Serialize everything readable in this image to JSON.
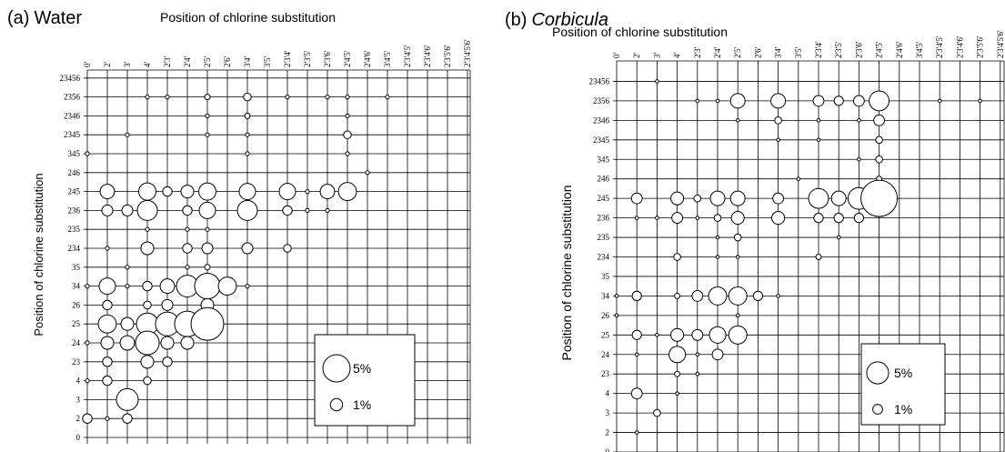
{
  "chart_data": [
    {
      "type": "bubble",
      "panel": "(a)",
      "title": "Water",
      "title_italic": false,
      "x_label": "Position of chlorine substitution",
      "y_label": "Position of chlorine substitution",
      "x_categories": [
        "0'",
        "2'",
        "3'",
        "4'",
        "2'3'",
        "2'4'",
        "2'5'",
        "2'6'",
        "3'4'",
        "3'5'",
        "2'3'4'",
        "2'3'5'",
        "2'3'6'",
        "2'4'5'",
        "2'4'6'",
        "3'4'5'",
        "2'3'4'5'",
        "2'3'4'6'",
        "2'3'5'6'",
        "2'3'4'5'6'"
      ],
      "y_categories": [
        "0",
        "2",
        "3",
        "4",
        "23",
        "24",
        "25",
        "26",
        "34",
        "35",
        "234",
        "235",
        "236",
        "245",
        "246",
        "345",
        "2345",
        "2346",
        "2356",
        "23456"
      ],
      "legend": {
        "values": [
          5,
          1
        ],
        "value_labels": [
          "5%",
          "1%"
        ]
      },
      "points": [
        {
          "x": "4'",
          "y": "2356",
          "value": 0.1
        },
        {
          "x": "2'3'",
          "y": "2356",
          "value": 0.1
        },
        {
          "x": "2'5'",
          "y": "2356",
          "value": 0.2
        },
        {
          "x": "3'4'",
          "y": "2356",
          "value": 0.4
        },
        {
          "x": "2'3'4'",
          "y": "2356",
          "value": 0.1
        },
        {
          "x": "2'3'6'",
          "y": "2356",
          "value": 0.1
        },
        {
          "x": "2'4'5'",
          "y": "2356",
          "value": 0.1
        },
        {
          "x": "3'4'5'",
          "y": "2356",
          "value": 0.1
        },
        {
          "x": "2'5'",
          "y": "2346",
          "value": 0.1
        },
        {
          "x": "3'4'",
          "y": "2346",
          "value": 0.2
        },
        {
          "x": "2'4'5'",
          "y": "2346",
          "value": 0.1
        },
        {
          "x": "3'",
          "y": "2345",
          "value": 0.1
        },
        {
          "x": "2'5'",
          "y": "2345",
          "value": 0.1
        },
        {
          "x": "3'4'",
          "y": "2345",
          "value": 0.1
        },
        {
          "x": "2'4'5'",
          "y": "2345",
          "value": 0.4
        },
        {
          "x": "0'",
          "y": "345",
          "value": 0.1
        },
        {
          "x": "3'4'",
          "y": "345",
          "value": 0.1
        },
        {
          "x": "2'4'5'",
          "y": "345",
          "value": 0.1
        },
        {
          "x": "2'4'6'",
          "y": "246",
          "value": 0.1
        },
        {
          "x": "2'",
          "y": "245",
          "value": 1.4
        },
        {
          "x": "4'",
          "y": "245",
          "value": 2
        },
        {
          "x": "2'3'",
          "y": "245",
          "value": 0.6
        },
        {
          "x": "2'4'",
          "y": "245",
          "value": 1.1
        },
        {
          "x": "2'5'",
          "y": "245",
          "value": 2
        },
        {
          "x": "3'4'",
          "y": "245",
          "value": 1.8
        },
        {
          "x": "2'3'4'",
          "y": "245",
          "value": 1.8
        },
        {
          "x": "2'3'5'",
          "y": "245",
          "value": 0.1
        },
        {
          "x": "2'3'6'",
          "y": "245",
          "value": 1.4
        },
        {
          "x": "2'4'5'",
          "y": "245",
          "value": 2.2
        },
        {
          "x": "2'",
          "y": "236",
          "value": 0.8
        },
        {
          "x": "3'",
          "y": "236",
          "value": 0.8
        },
        {
          "x": "4'",
          "y": "236",
          "value": 2.7
        },
        {
          "x": "2'4'",
          "y": "236",
          "value": 0.6
        },
        {
          "x": "2'5'",
          "y": "236",
          "value": 1.8
        },
        {
          "x": "3'4'",
          "y": "236",
          "value": 2.7
        },
        {
          "x": "2'3'4'",
          "y": "236",
          "value": 0.6
        },
        {
          "x": "2'3'5'",
          "y": "236",
          "value": 0.1
        },
        {
          "x": "2'3'6'",
          "y": "236",
          "value": 0.1
        },
        {
          "x": "4'",
          "y": "235",
          "value": 0.1
        },
        {
          "x": "2'4'",
          "y": "235",
          "value": 0.1
        },
        {
          "x": "2'5'",
          "y": "235",
          "value": 0.1
        },
        {
          "x": "2'",
          "y": "234",
          "value": 0.1
        },
        {
          "x": "4'",
          "y": "234",
          "value": 1.1
        },
        {
          "x": "2'4'",
          "y": "234",
          "value": 0.6
        },
        {
          "x": "2'5'",
          "y": "234",
          "value": 0.8
        },
        {
          "x": "3'4'",
          "y": "234",
          "value": 0.8
        },
        {
          "x": "2'3'4'",
          "y": "234",
          "value": 0.4
        },
        {
          "x": "3'",
          "y": "35",
          "value": 0.1
        },
        {
          "x": "2'4'",
          "y": "35",
          "value": 0.1
        },
        {
          "x": "2'5'",
          "y": "35",
          "value": 0.2
        },
        {
          "x": "0'",
          "y": "34",
          "value": 0.1
        },
        {
          "x": "2'",
          "y": "34",
          "value": 1.8
        },
        {
          "x": "3'",
          "y": "34",
          "value": 0.1
        },
        {
          "x": "4'",
          "y": "34",
          "value": 0.6
        },
        {
          "x": "2'3'",
          "y": "34",
          "value": 1.4
        },
        {
          "x": "2'4'",
          "y": "34",
          "value": 3.2
        },
        {
          "x": "2'5'",
          "y": "34",
          "value": 4.4
        },
        {
          "x": "2'6'",
          "y": "34",
          "value": 2.2
        },
        {
          "x": "3'4'",
          "y": "34",
          "value": 0.1
        },
        {
          "x": "2'",
          "y": "26",
          "value": 0.6
        },
        {
          "x": "4'",
          "y": "26",
          "value": 0.4
        },
        {
          "x": "2'3'",
          "y": "26",
          "value": 0.8
        },
        {
          "x": "2'5'",
          "y": "26",
          "value": 1.1
        },
        {
          "x": "2'",
          "y": "25",
          "value": 2.2
        },
        {
          "x": "3'",
          "y": "25",
          "value": 1.1
        },
        {
          "x": "4'",
          "y": "25",
          "value": 3.2
        },
        {
          "x": "2'3'",
          "y": "25",
          "value": 3.8
        },
        {
          "x": "2'4'",
          "y": "25",
          "value": 4.4
        },
        {
          "x": "2'5'",
          "y": "25",
          "value": 7.2
        },
        {
          "x": "0'",
          "y": "24",
          "value": 0.1
        },
        {
          "x": "2'",
          "y": "24",
          "value": 1.1
        },
        {
          "x": "3'",
          "y": "24",
          "value": 1.4
        },
        {
          "x": "4'",
          "y": "24",
          "value": 3.8
        },
        {
          "x": "2'3'",
          "y": "24",
          "value": 1.1
        },
        {
          "x": "2'4'",
          "y": "24",
          "value": 1.1
        },
        {
          "x": "2'",
          "y": "23",
          "value": 0.6
        },
        {
          "x": "4'",
          "y": "23",
          "value": 1.1
        },
        {
          "x": "2'3'",
          "y": "23",
          "value": 0.6
        },
        {
          "x": "0'",
          "y": "4",
          "value": 0.1
        },
        {
          "x": "2'",
          "y": "4",
          "value": 0.6
        },
        {
          "x": "4'",
          "y": "4",
          "value": 0.4
        },
        {
          "x": "3'",
          "y": "3",
          "value": 3.2
        },
        {
          "x": "0'",
          "y": "2",
          "value": 0.6
        },
        {
          "x": "2'",
          "y": "2",
          "value": 0.1
        },
        {
          "x": "3'",
          "y": "2",
          "value": 0.6
        }
      ]
    },
    {
      "type": "bubble",
      "panel": "(b)",
      "title": "Corbicula",
      "title_italic": true,
      "x_label": "Position of chlorine substitution",
      "y_label": "Position of chlorine substitution",
      "x_categories": [
        "0'",
        "2'",
        "3'",
        "4'",
        "2'3'",
        "2'4'",
        "2'5'",
        "2'6'",
        "3'4'",
        "3'5'",
        "2'3'4'",
        "2'3'5'",
        "2'3'6'",
        "2'4'5'",
        "2'4'6'",
        "3'4'5'",
        "2'3'4'5'",
        "2'3'4'6'",
        "2'3'5'6'",
        "2'3'4'5'6'"
      ],
      "y_categories": [
        "0",
        "2",
        "3",
        "4",
        "23",
        "24",
        "25",
        "26",
        "34",
        "35",
        "234",
        "235",
        "236",
        "245",
        "246",
        "345",
        "2345",
        "2346",
        "2356",
        "23456"
      ],
      "legend": {
        "values": [
          5,
          1
        ],
        "value_labels": [
          "5%",
          "1%"
        ]
      },
      "points": [
        {
          "x": "3'",
          "y": "23456",
          "value": 0.1
        },
        {
          "x": "2'3'",
          "y": "2356",
          "value": 0.1
        },
        {
          "x": "2'4'",
          "y": "2356",
          "value": 0.1
        },
        {
          "x": "2'5'",
          "y": "2356",
          "value": 2.2
        },
        {
          "x": "3'4'",
          "y": "2356",
          "value": 2.2
        },
        {
          "x": "2'3'4'",
          "y": "2356",
          "value": 1.2
        },
        {
          "x": "2'3'5'",
          "y": "2356",
          "value": 0.9
        },
        {
          "x": "2'3'6'",
          "y": "2356",
          "value": 1.2
        },
        {
          "x": "2'4'5'",
          "y": "2356",
          "value": 4.1
        },
        {
          "x": "2'3'4'5'",
          "y": "2356",
          "value": 0.1
        },
        {
          "x": "2'3'5'6'",
          "y": "2356",
          "value": 0.1
        },
        {
          "x": "2'5'",
          "y": "2346",
          "value": 0.1
        },
        {
          "x": "3'4'",
          "y": "2346",
          "value": 0.5
        },
        {
          "x": "2'3'4'",
          "y": "2346",
          "value": 0.1
        },
        {
          "x": "2'3'6'",
          "y": "2346",
          "value": 0.1
        },
        {
          "x": "2'4'5'",
          "y": "2346",
          "value": 1.2
        },
        {
          "x": "3'4'",
          "y": "2345",
          "value": 0.1
        },
        {
          "x": "2'3'4'",
          "y": "2345",
          "value": 0.1
        },
        {
          "x": "2'4'5'",
          "y": "2345",
          "value": 0.5
        },
        {
          "x": "2'3'6'",
          "y": "345",
          "value": 0.1
        },
        {
          "x": "2'4'5'",
          "y": "345",
          "value": 0.5
        },
        {
          "x": "3'5'",
          "y": "246",
          "value": 0.1
        },
        {
          "x": "2'4'5'",
          "y": "246",
          "value": 0.3
        },
        {
          "x": "2'",
          "y": "245",
          "value": 1.2
        },
        {
          "x": "4'",
          "y": "245",
          "value": 1.7
        },
        {
          "x": "2'3'",
          "y": "245",
          "value": 0.5
        },
        {
          "x": "2'4'",
          "y": "245",
          "value": 2.2
        },
        {
          "x": "2'5'",
          "y": "245",
          "value": 2.2
        },
        {
          "x": "3'4'",
          "y": "245",
          "value": 1.2
        },
        {
          "x": "2'3'4'",
          "y": "245",
          "value": 4.1
        },
        {
          "x": "2'3'5'",
          "y": "245",
          "value": 2.2
        },
        {
          "x": "2'3'6'",
          "y": "245",
          "value": 4.9
        },
        {
          "x": "2'4'5'",
          "y": "245",
          "value": 13.7
        },
        {
          "x": "2'",
          "y": "236",
          "value": 0.1
        },
        {
          "x": "3'",
          "y": "236",
          "value": 0.1
        },
        {
          "x": "4'",
          "y": "236",
          "value": 1.2
        },
        {
          "x": "2'3'",
          "y": "236",
          "value": 0.1
        },
        {
          "x": "2'4'",
          "y": "236",
          "value": 0.5
        },
        {
          "x": "2'5'",
          "y": "236",
          "value": 1.7
        },
        {
          "x": "3'4'",
          "y": "236",
          "value": 1.7
        },
        {
          "x": "2'3'4'",
          "y": "236",
          "value": 0.9
        },
        {
          "x": "2'3'5'",
          "y": "236",
          "value": 0.9
        },
        {
          "x": "2'3'6'",
          "y": "236",
          "value": 0.9
        },
        {
          "x": "2'4'",
          "y": "235",
          "value": 0.1
        },
        {
          "x": "2'5'",
          "y": "235",
          "value": 0.5
        },
        {
          "x": "2'3'5'",
          "y": "235",
          "value": 0.1
        },
        {
          "x": "4'",
          "y": "234",
          "value": 0.5
        },
        {
          "x": "2'4'",
          "y": "234",
          "value": 0.1
        },
        {
          "x": "2'5'",
          "y": "234",
          "value": 0.1
        },
        {
          "x": "2'3'4'",
          "y": "234",
          "value": 0.3
        },
        {
          "x": "0'",
          "y": "34",
          "value": 0.1
        },
        {
          "x": "2'",
          "y": "34",
          "value": 0.9
        },
        {
          "x": "4'",
          "y": "34",
          "value": 0.3
        },
        {
          "x": "2'3'",
          "y": "34",
          "value": 1.2
        },
        {
          "x": "2'4'",
          "y": "34",
          "value": 3.4
        },
        {
          "x": "2'5'",
          "y": "34",
          "value": 3.4
        },
        {
          "x": "2'6'",
          "y": "34",
          "value": 0.9
        },
        {
          "x": "3'4'",
          "y": "34",
          "value": 0.1
        },
        {
          "x": "0'",
          "y": "26",
          "value": 0.1
        },
        {
          "x": "2'5'",
          "y": "26",
          "value": 0.1
        },
        {
          "x": "2'",
          "y": "25",
          "value": 0.9
        },
        {
          "x": "3'",
          "y": "25",
          "value": 0.1
        },
        {
          "x": "4'",
          "y": "25",
          "value": 1.7
        },
        {
          "x": "2'3'",
          "y": "25",
          "value": 1.2
        },
        {
          "x": "2'4'",
          "y": "25",
          "value": 2.8
        },
        {
          "x": "2'5'",
          "y": "25",
          "value": 3.4
        },
        {
          "x": "2'",
          "y": "24",
          "value": 0.1
        },
        {
          "x": "4'",
          "y": "24",
          "value": 2.8
        },
        {
          "x": "2'3'",
          "y": "24",
          "value": 0.1
        },
        {
          "x": "2'4'",
          "y": "24",
          "value": 1.2
        },
        {
          "x": "4'",
          "y": "23",
          "value": 0.3
        },
        {
          "x": "2'3'",
          "y": "23",
          "value": 0.1
        },
        {
          "x": "2'",
          "y": "4",
          "value": 1.2
        },
        {
          "x": "4'",
          "y": "4",
          "value": 0.1
        },
        {
          "x": "3'",
          "y": "3",
          "value": 0.5
        },
        {
          "x": "2'",
          "y": "2",
          "value": 0.1
        }
      ]
    }
  ]
}
